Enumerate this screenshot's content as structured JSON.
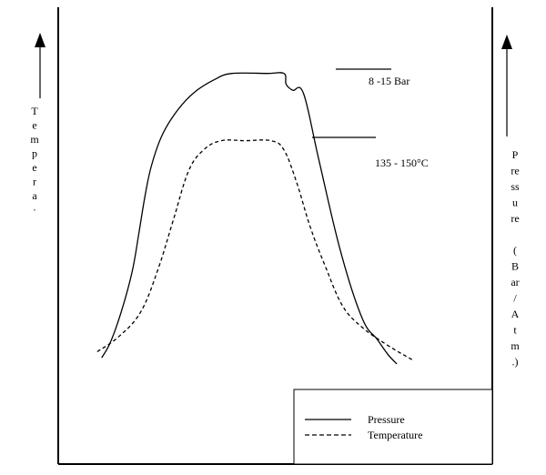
{
  "chart_data": {
    "type": "line",
    "title": "",
    "xlabel": "",
    "grid": false,
    "legend_placement": "bottom-right",
    "left_axis_label_chars": [
      "T",
      "e",
      "m",
      "p",
      "e",
      "r",
      "a",
      "·"
    ],
    "right_axis_label_chars": [
      "P",
      "re",
      "ss",
      "u",
      "re",
      "",
      "(",
      "B",
      "ar",
      "/",
      "A",
      "t",
      "m",
      ".)"
    ],
    "annotations": [
      {
        "id": "pressure-range",
        "text": "8 -15 Bar"
      },
      {
        "id": "temperature-range",
        "text": "135 - 150°C"
      }
    ],
    "legend": [
      {
        "name": "Pressure",
        "style": "solid"
      },
      {
        "name": "Temperature",
        "style": "dashed"
      }
    ],
    "series": [
      {
        "name": "Pressure",
        "style": "solid",
        "color": "#000000",
        "points": [
          [
            0.1,
            0.05
          ],
          [
            0.12,
            0.1
          ],
          [
            0.145,
            0.2
          ],
          [
            0.17,
            0.33
          ],
          [
            0.185,
            0.45
          ],
          [
            0.2,
            0.58
          ],
          [
            0.215,
            0.68
          ],
          [
            0.24,
            0.78
          ],
          [
            0.275,
            0.86
          ],
          [
            0.315,
            0.92
          ],
          [
            0.36,
            0.96
          ],
          [
            0.4,
            0.98
          ],
          [
            0.48,
            0.98
          ],
          [
            0.52,
            0.98
          ],
          [
            0.525,
            0.945
          ],
          [
            0.54,
            0.925
          ],
          [
            0.565,
            0.915
          ],
          [
            0.6,
            0.7
          ],
          [
            0.65,
            0.4
          ],
          [
            0.7,
            0.18
          ],
          [
            0.735,
            0.11
          ],
          [
            0.76,
            0.06
          ],
          [
            0.78,
            0.03
          ]
        ]
      },
      {
        "name": "Temperature",
        "style": "dashed",
        "color": "#000000",
        "points": [
          [
            0.09,
            0.07
          ],
          [
            0.14,
            0.12
          ],
          [
            0.19,
            0.2
          ],
          [
            0.23,
            0.34
          ],
          [
            0.265,
            0.5
          ],
          [
            0.3,
            0.66
          ],
          [
            0.335,
            0.73
          ],
          [
            0.375,
            0.76
          ],
          [
            0.43,
            0.76
          ],
          [
            0.49,
            0.76
          ],
          [
            0.52,
            0.73
          ],
          [
            0.55,
            0.62
          ],
          [
            0.58,
            0.48
          ],
          [
            0.615,
            0.35
          ],
          [
            0.655,
            0.22
          ],
          [
            0.7,
            0.15
          ],
          [
            0.76,
            0.09
          ],
          [
            0.82,
            0.04
          ]
        ]
      }
    ]
  }
}
